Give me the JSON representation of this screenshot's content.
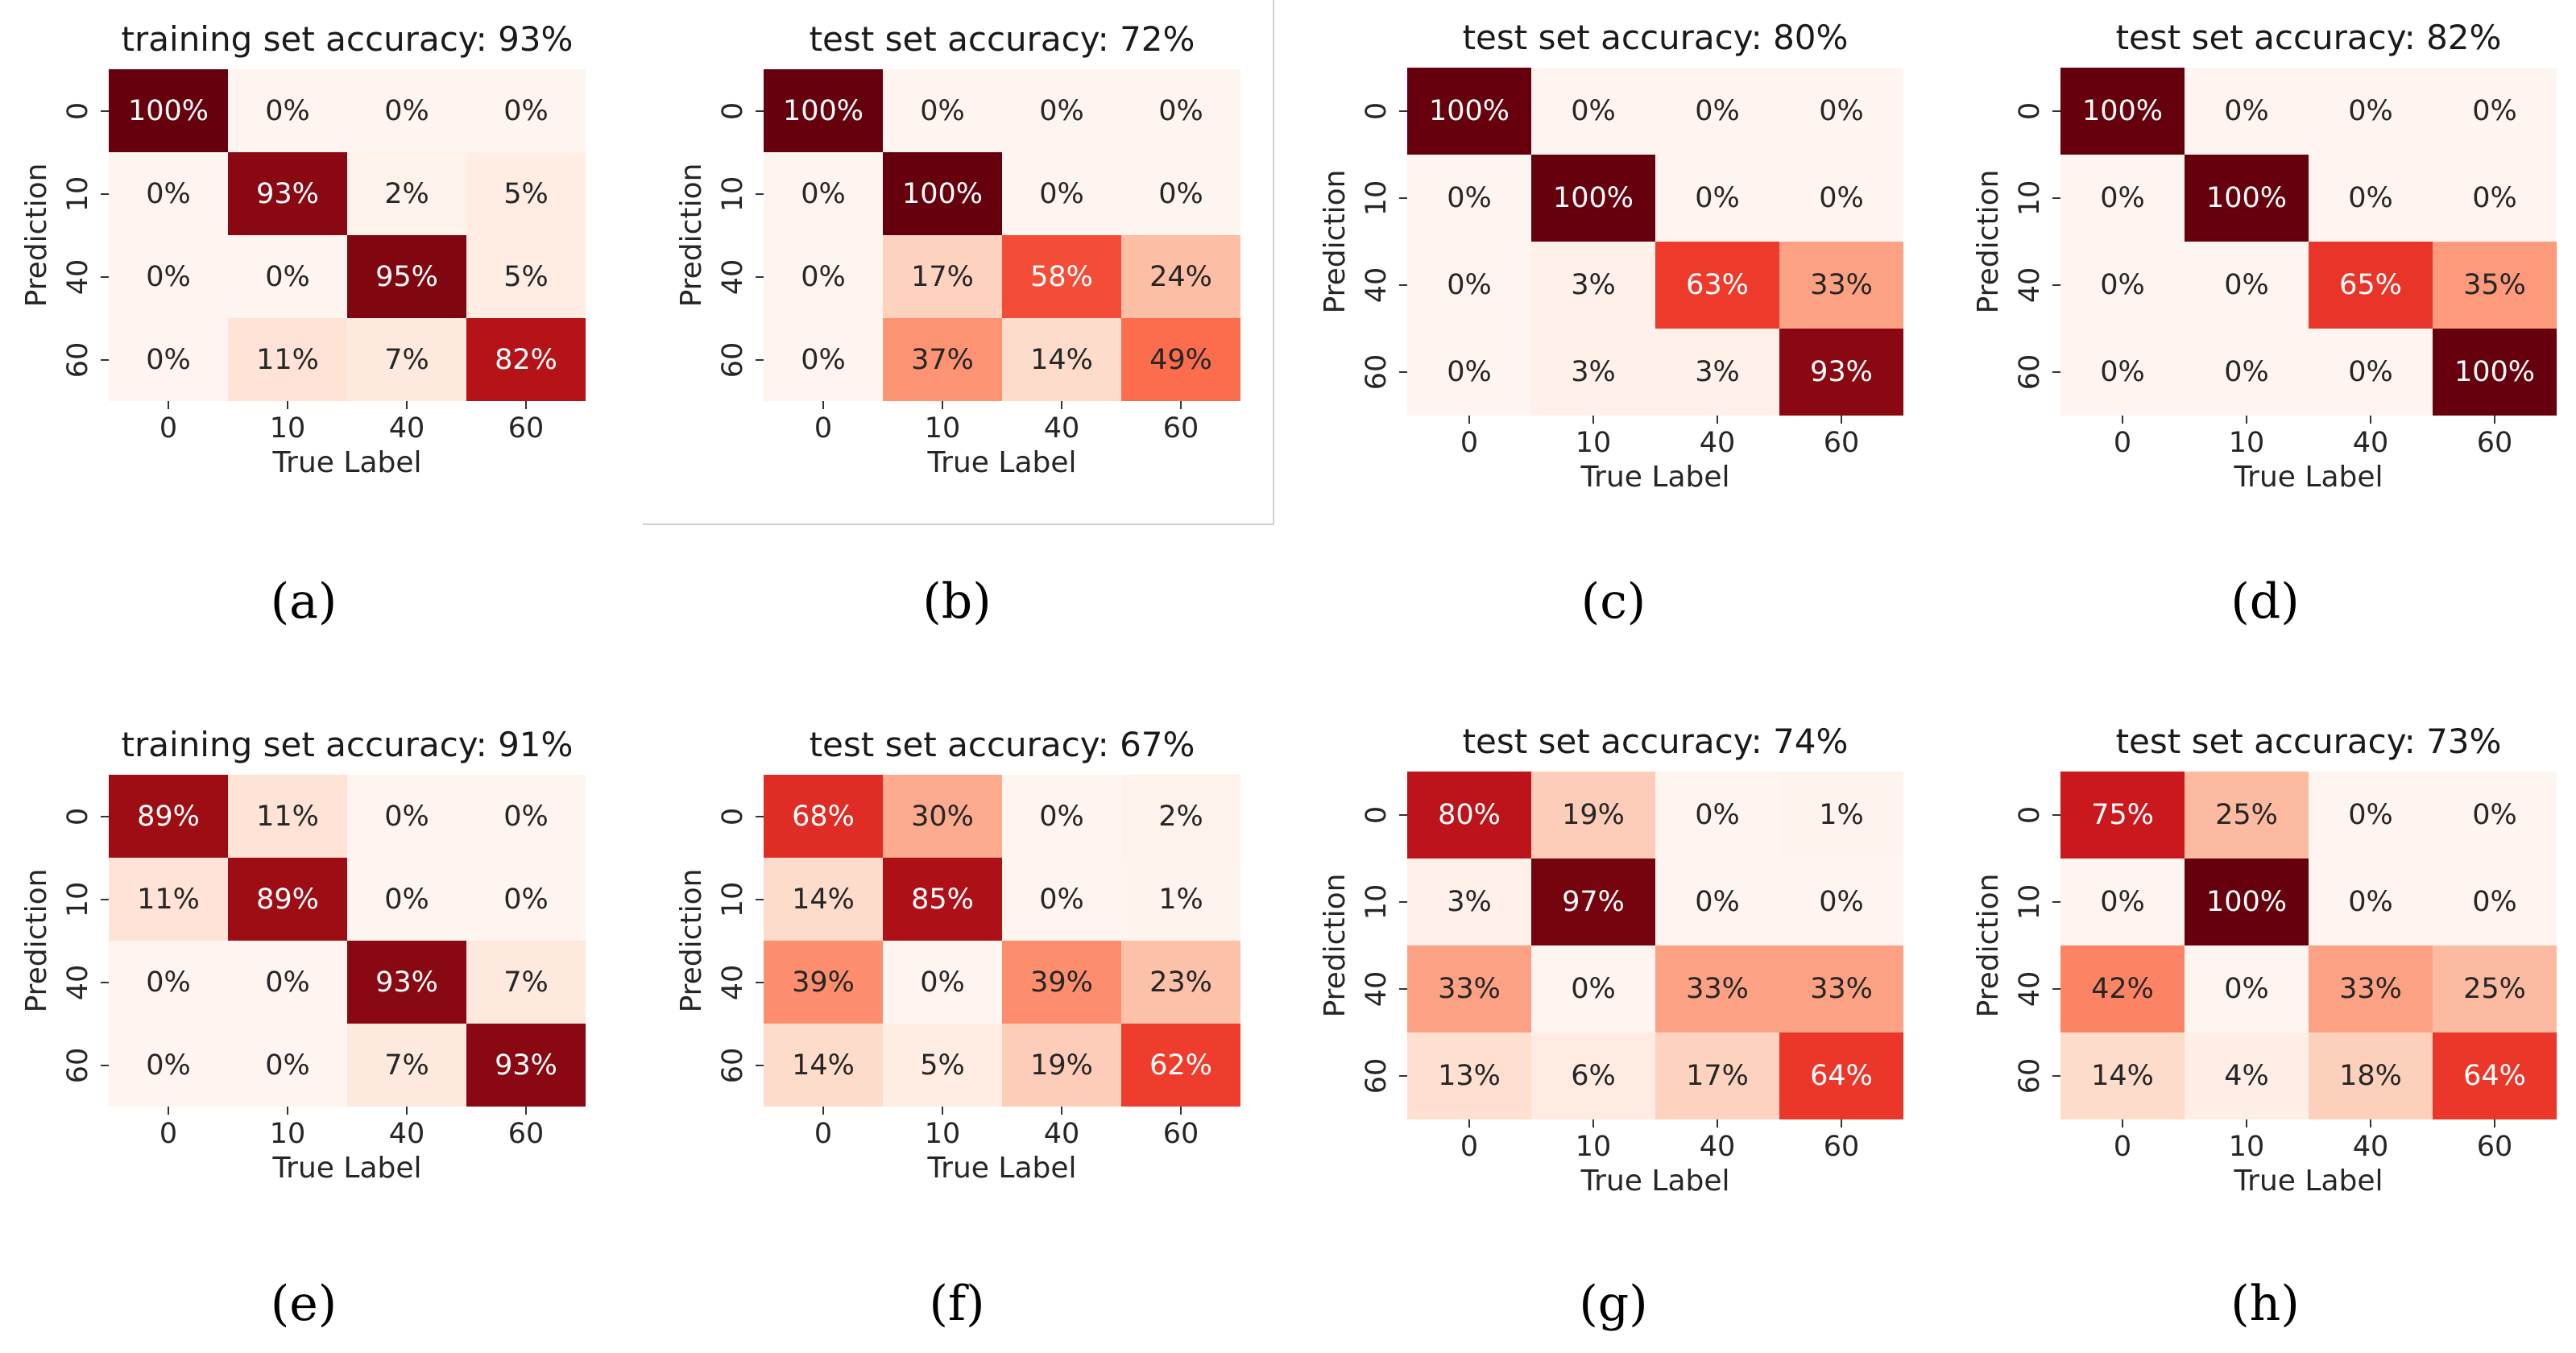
{
  "chart_data": [
    {
      "id": "a",
      "type": "heatmap",
      "caption": "(a)",
      "title": "training set accuracy: 93%",
      "xlabel": "True Label",
      "ylabel": "Prediction",
      "x_categories": [
        "0",
        "10",
        "40",
        "60"
      ],
      "y_categories": [
        "0",
        "10",
        "40",
        "60"
      ],
      "values": [
        [
          100,
          0,
          0,
          0
        ],
        [
          0,
          93,
          2,
          5
        ],
        [
          0,
          0,
          95,
          5
        ],
        [
          0,
          11,
          7,
          82
        ]
      ],
      "value_format": "percent",
      "colormap": "Reds",
      "vmin": 0,
      "vmax": 100
    },
    {
      "id": "b",
      "type": "heatmap",
      "caption": "(b)",
      "title": "test set accuracy: 72%",
      "xlabel": "True Label",
      "ylabel": "Prediction",
      "x_categories": [
        "0",
        "10",
        "40",
        "60"
      ],
      "y_categories": [
        "0",
        "10",
        "40",
        "60"
      ],
      "values": [
        [
          100,
          0,
          0,
          0
        ],
        [
          0,
          100,
          0,
          0
        ],
        [
          0,
          17,
          58,
          24
        ],
        [
          0,
          37,
          14,
          49
        ]
      ],
      "value_format": "percent",
      "colormap": "Reds",
      "vmin": 0,
      "vmax": 100
    },
    {
      "id": "c",
      "type": "heatmap",
      "caption": "(c)",
      "title": "test set accuracy: 80%",
      "xlabel": "True Label",
      "ylabel": "Prediction",
      "x_categories": [
        "0",
        "10",
        "40",
        "60"
      ],
      "y_categories": [
        "0",
        "10",
        "40",
        "60"
      ],
      "values": [
        [
          100,
          0,
          0,
          0
        ],
        [
          0,
          100,
          0,
          0
        ],
        [
          0,
          3,
          63,
          33
        ],
        [
          0,
          3,
          3,
          93
        ]
      ],
      "value_format": "percent",
      "colormap": "Reds",
      "vmin": 0,
      "vmax": 100
    },
    {
      "id": "d",
      "type": "heatmap",
      "caption": "(d)",
      "title": "test set accuracy: 82%",
      "xlabel": "True Label",
      "ylabel": "Prediction",
      "x_categories": [
        "0",
        "10",
        "40",
        "60"
      ],
      "y_categories": [
        "0",
        "10",
        "40",
        "60"
      ],
      "values": [
        [
          100,
          0,
          0,
          0
        ],
        [
          0,
          100,
          0,
          0
        ],
        [
          0,
          0,
          65,
          35
        ],
        [
          0,
          0,
          0,
          100
        ]
      ],
      "value_format": "percent",
      "colormap": "Reds",
      "vmin": 0,
      "vmax": 100
    },
    {
      "id": "e",
      "type": "heatmap",
      "caption": "(e)",
      "title": "training set accuracy: 91%",
      "xlabel": "True Label",
      "ylabel": "Prediction",
      "x_categories": [
        "0",
        "10",
        "40",
        "60"
      ],
      "y_categories": [
        "0",
        "10",
        "40",
        "60"
      ],
      "values": [
        [
          89,
          11,
          0,
          0
        ],
        [
          11,
          89,
          0,
          0
        ],
        [
          0,
          0,
          93,
          7
        ],
        [
          0,
          0,
          7,
          93
        ]
      ],
      "value_format": "percent",
      "colormap": "Reds",
      "vmin": 0,
      "vmax": 100
    },
    {
      "id": "f",
      "type": "heatmap",
      "caption": "(f)",
      "title": "test set accuracy: 67%",
      "xlabel": "True Label",
      "ylabel": "Prediction",
      "x_categories": [
        "0",
        "10",
        "40",
        "60"
      ],
      "y_categories": [
        "0",
        "10",
        "40",
        "60"
      ],
      "values": [
        [
          68,
          30,
          0,
          2
        ],
        [
          14,
          85,
          0,
          1
        ],
        [
          39,
          0,
          39,
          23
        ],
        [
          14,
          5,
          19,
          62
        ]
      ],
      "value_format": "percent",
      "colormap": "Reds",
      "vmin": 0,
      "vmax": 100
    },
    {
      "id": "g",
      "type": "heatmap",
      "caption": "(g)",
      "title": "test set accuracy: 74%",
      "xlabel": "True Label",
      "ylabel": "Prediction",
      "x_categories": [
        "0",
        "10",
        "40",
        "60"
      ],
      "y_categories": [
        "0",
        "10",
        "40",
        "60"
      ],
      "values": [
        [
          80,
          19,
          0,
          1
        ],
        [
          3,
          97,
          0,
          0
        ],
        [
          33,
          0,
          33,
          33
        ],
        [
          13,
          6,
          17,
          64
        ]
      ],
      "value_format": "percent",
      "colormap": "Reds",
      "vmin": 0,
      "vmax": 100
    },
    {
      "id": "h",
      "type": "heatmap",
      "caption": "(h)",
      "title": "test set accuracy: 73%",
      "xlabel": "True Label",
      "ylabel": "Prediction",
      "x_categories": [
        "0",
        "10",
        "40",
        "60"
      ],
      "y_categories": [
        "0",
        "10",
        "40",
        "60"
      ],
      "values": [
        [
          75,
          25,
          0,
          0
        ],
        [
          0,
          100,
          0,
          0
        ],
        [
          42,
          0,
          33,
          25
        ],
        [
          14,
          4,
          18,
          64
        ]
      ],
      "value_format": "percent",
      "colormap": "Reds",
      "vmin": 0,
      "vmax": 100
    }
  ]
}
